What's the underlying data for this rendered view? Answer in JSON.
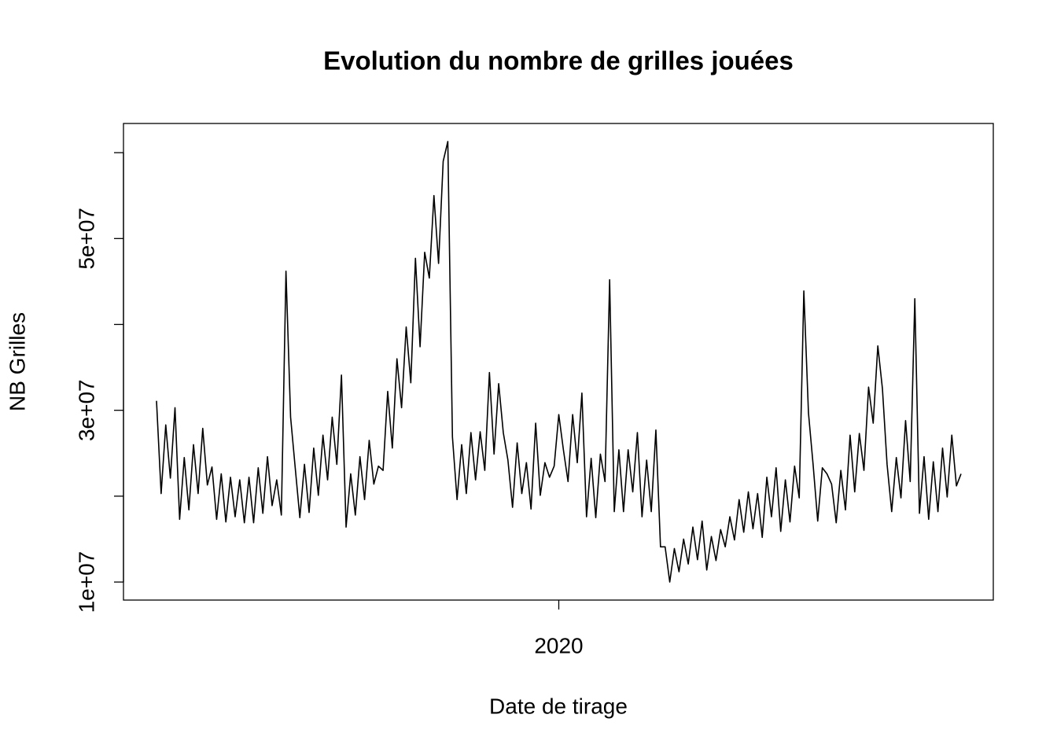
{
  "chart_data": {
    "type": "line",
    "title": "Evolution du nombre de grilles jouées",
    "x_label": "Date de tirage",
    "y_label": "NB Grilles",
    "color": "#000000",
    "categories": [
      null,
      null,
      null,
      null,
      null,
      null,
      null,
      null,
      null,
      null,
      null,
      null,
      null,
      null,
      null,
      null,
      null,
      null,
      null,
      null,
      null,
      null,
      null,
      null,
      null,
      null,
      null,
      null,
      null,
      null,
      null,
      null,
      null,
      null,
      null,
      null,
      null,
      null,
      null,
      null,
      null,
      null,
      null,
      null,
      null,
      null,
      null,
      null,
      null,
      null,
      null,
      null,
      null,
      null,
      null,
      null,
      null,
      null,
      null,
      null,
      null,
      null,
      null,
      null,
      null,
      null,
      null,
      null,
      null,
      null,
      null,
      null,
      null,
      null,
      null,
      null,
      null,
      null,
      null,
      null,
      null,
      null,
      null,
      null,
      null,
      null,
      null,
      "2020",
      null,
      null,
      null,
      null,
      null,
      null,
      null,
      null,
      null,
      null,
      null,
      null,
      null,
      null,
      null,
      null,
      null,
      null,
      null,
      null,
      null,
      null,
      null,
      null,
      null,
      null,
      null,
      null,
      null,
      null,
      null,
      null,
      null,
      null,
      null,
      null,
      null,
      null,
      null,
      null,
      null,
      null,
      null,
      null,
      null,
      null,
      null,
      null,
      null,
      null,
      null,
      null,
      null,
      null,
      null,
      null,
      null,
      null,
      null,
      null,
      null,
      null,
      null,
      null,
      null,
      null,
      null,
      null,
      null,
      null,
      null,
      null,
      null,
      null,
      null,
      null,
      null,
      null,
      null,
      null,
      null,
      null,
      null,
      null,
      null,
      null,
      null
    ],
    "values": [
      31100000,
      20300000,
      28300000,
      22100000,
      30300000,
      17300000,
      24500000,
      18400000,
      26000000,
      20300000,
      27900000,
      21300000,
      23400000,
      17300000,
      22600000,
      17000000,
      22200000,
      17600000,
      21900000,
      16900000,
      22200000,
      16900000,
      23300000,
      18000000,
      24600000,
      18900000,
      21900000,
      17800000,
      46200000,
      29200000,
      23300000,
      17500000,
      23700000,
      18100000,
      25600000,
      20100000,
      27100000,
      21900000,
      29200000,
      23700000,
      34100000,
      16400000,
      22600000,
      17800000,
      24600000,
      19600000,
      26500000,
      21400000,
      23500000,
      23000000,
      32200000,
      25600000,
      36000000,
      30300000,
      39700000,
      33200000,
      47700000,
      37400000,
      48400000,
      45400000,
      55000000,
      47100000,
      59000000,
      61300000,
      26900000,
      19600000,
      26000000,
      20300000,
      27400000,
      21900000,
      27500000,
      23000000,
      34400000,
      24900000,
      33100000,
      27400000,
      24200000,
      18700000,
      26200000,
      20300000,
      23900000,
      18500000,
      28500000,
      20100000,
      23900000,
      22200000,
      23500000,
      29500000,
      25400000,
      21700000,
      29500000,
      23900000,
      32000000,
      17600000,
      24400000,
      17500000,
      24900000,
      21700000,
      45200000,
      18200000,
      25400000,
      18200000,
      25400000,
      20500000,
      27400000,
      17600000,
      24200000,
      18200000,
      27700000,
      14100000,
      14100000,
      10000000,
      13900000,
      11200000,
      15000000,
      12100000,
      16400000,
      12600000,
      17100000,
      11400000,
      15300000,
      12500000,
      16100000,
      14100000,
      17600000,
      14900000,
      19600000,
      15800000,
      20500000,
      16200000,
      20300000,
      15200000,
      22200000,
      17600000,
      23300000,
      15900000,
      21900000,
      17000000,
      23500000,
      19800000,
      43900000,
      29700000,
      23700000,
      17100000,
      23300000,
      22600000,
      21400000,
      16900000,
      23000000,
      18400000,
      27100000,
      20500000,
      27300000,
      23000000,
      32700000,
      28500000,
      37500000,
      32500000,
      23700000,
      18200000,
      24500000,
      19800000,
      28800000,
      21700000,
      43000000,
      18000000,
      24600000,
      17300000,
      24000000,
      18200000,
      25600000,
      19900000,
      27100000,
      21200000,
      22600000
    ],
    "ylim": [
      7900000,
      63400000
    ],
    "yticks": [
      {
        "value": 10000000,
        "label": "1e+07"
      },
      {
        "value": 20000000,
        "label": null
      },
      {
        "value": 30000000,
        "label": "3e+07"
      },
      {
        "value": 40000000,
        "label": null
      },
      {
        "value": 50000000,
        "label": "5e+07"
      },
      {
        "value": 60000000,
        "label": null
      }
    ],
    "grid": false
  }
}
